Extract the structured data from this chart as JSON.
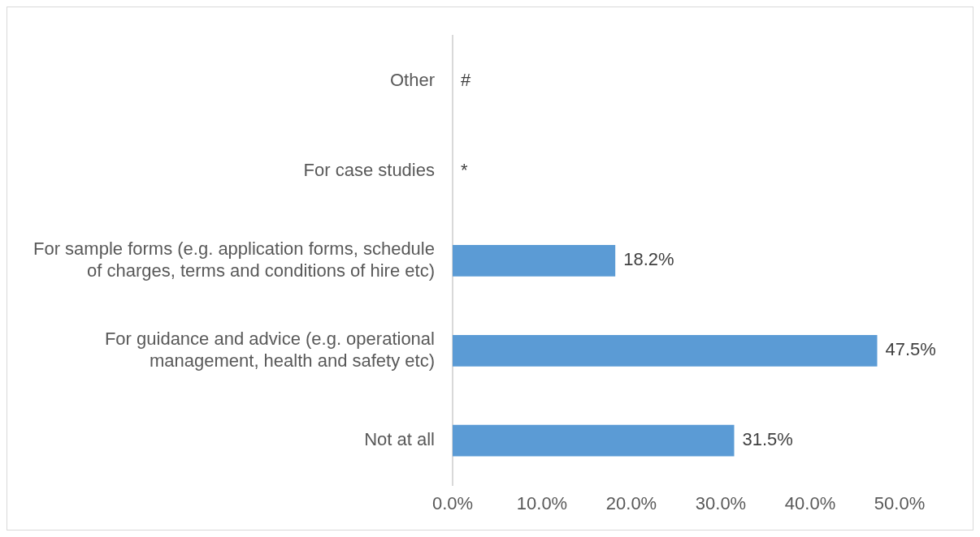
{
  "chart_data": {
    "type": "bar",
    "orientation": "horizontal",
    "categories": [
      "Other",
      "For case studies",
      "For sample forms (e.g. application forms, schedule of charges, terms and conditions of hire etc)",
      "For guidance and advice (e.g. operational management, health and safety etc)",
      "Not at all"
    ],
    "values": [
      null,
      null,
      18.2,
      47.5,
      31.5
    ],
    "value_labels": [
      "#",
      "*",
      "18.2%",
      "47.5%",
      "31.5%"
    ],
    "color": "#5b9bd5",
    "xlim": [
      0,
      50
    ],
    "xticks": [
      {
        "value": 0,
        "label": "0.0%"
      },
      {
        "value": 10,
        "label": "10.0%"
      },
      {
        "value": 20,
        "label": "20.0%"
      },
      {
        "value": 30,
        "label": "30.0%"
      },
      {
        "value": 40,
        "label": "40.0%"
      },
      {
        "value": 50,
        "label": "50.0%"
      }
    ],
    "grid": false,
    "legend": false
  }
}
